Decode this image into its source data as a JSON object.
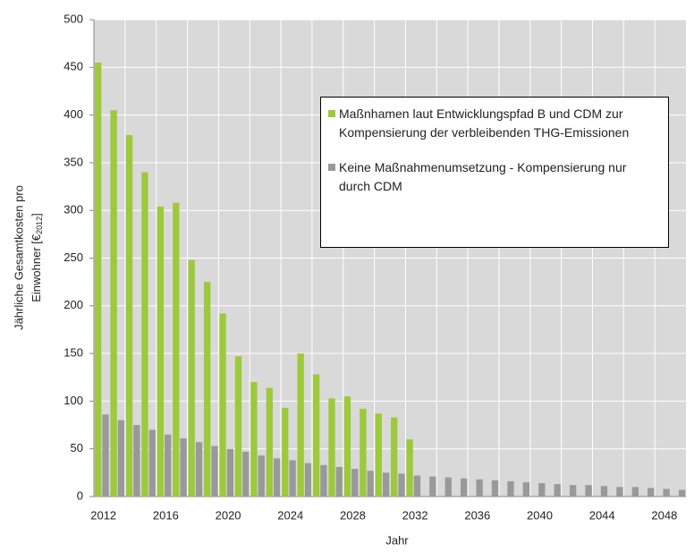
{
  "chart_data": {
    "type": "bar",
    "ylabel": [
      "Jährliche Gesamtkosten pro",
      "Einwohner [€",
      "2012",
      "]"
    ],
    "xlabel": "Jahr",
    "categories": [
      "2012",
      null,
      null,
      null,
      "2016",
      null,
      null,
      null,
      "2020",
      null,
      null,
      null,
      "2024",
      null,
      null,
      null,
      "2028",
      null,
      null,
      null,
      "2032",
      null,
      null,
      null,
      "2036",
      null,
      null,
      null,
      "2040",
      null,
      null,
      null,
      "2044",
      null,
      null,
      null,
      "2048",
      null
    ],
    "series": [
      {
        "name": "Maßnhamen laut Entwicklungspfad B und CDM zur Kompensierung der verbleibenden THG-Emissionen",
        "color": "#9dc93b",
        "values": [
          455,
          405,
          379,
          340,
          304,
          308,
          248,
          225,
          192,
          147,
          120,
          114,
          93,
          150,
          128,
          103,
          105,
          92,
          87,
          83,
          60,
          null,
          null,
          null,
          null,
          null,
          null,
          null,
          null,
          null,
          null,
          null,
          null,
          null,
          null,
          null,
          null,
          null
        ]
      },
      {
        "name": "Keine Maßnahmenumsetzung - Kompensierung nur durch CDM",
        "color": "#999999",
        "values": [
          86,
          80,
          75,
          70,
          65,
          61,
          57,
          53,
          50,
          47,
          43,
          40,
          38,
          35,
          33,
          31,
          29,
          27,
          25,
          24,
          22,
          21,
          20,
          19,
          18,
          17,
          16,
          15,
          14,
          13,
          12,
          12,
          11,
          10,
          10,
          9,
          8,
          7
        ]
      }
    ],
    "ylim": [
      0,
      500
    ],
    "yticks": [
      0,
      50,
      100,
      150,
      200,
      250,
      300,
      350,
      400,
      450,
      500
    ],
    "grid": true
  }
}
